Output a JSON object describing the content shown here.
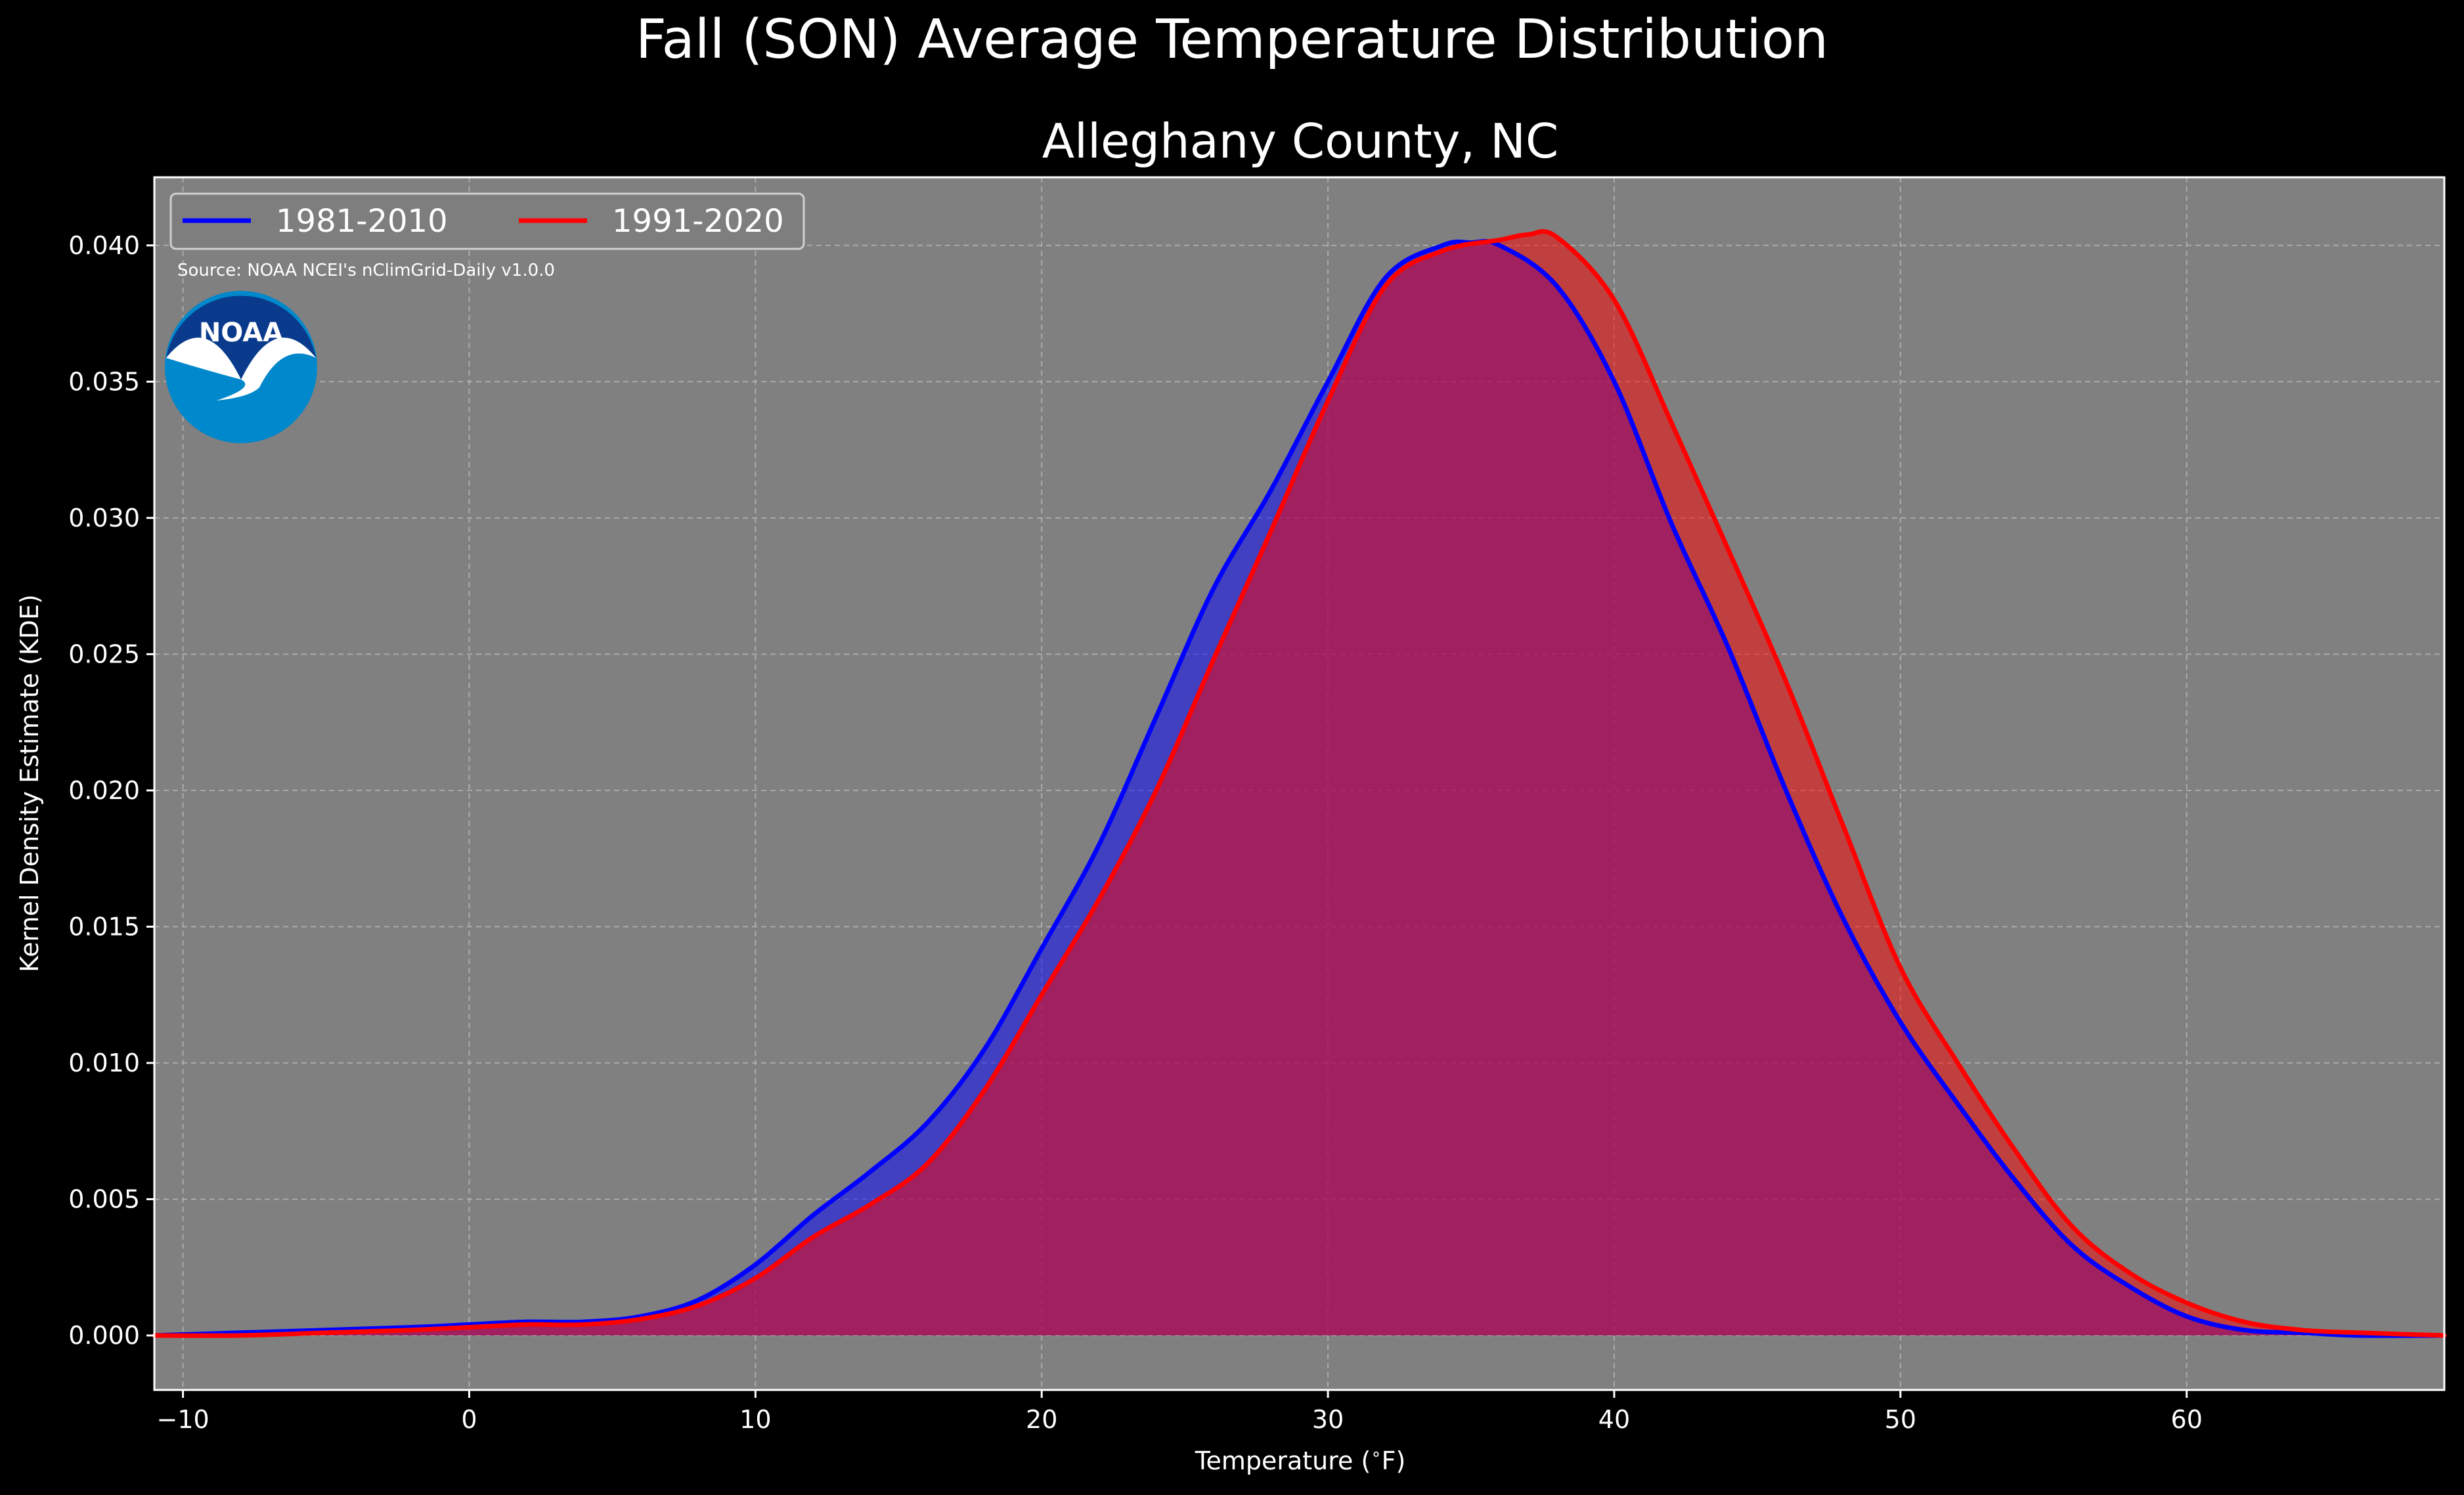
{
  "title": "Fall (SON) Average Temperature Distribution",
  "subtitle": "Alleghany County, NC",
  "source_note": "Source: NOAA NCEI's nClimGrid-Daily v1.0.0",
  "logo": {
    "text": "NOAA",
    "icon": "noaa-logo"
  },
  "colors": {
    "figure_bg": "#000000",
    "plot_bg": "#808080",
    "series_1": "#0000ff",
    "series_2": "#ff0000"
  },
  "chart_data": {
    "type": "area",
    "title": "Fall (SON) Average Temperature Distribution",
    "subtitle": "Alleghany County, NC",
    "xlabel": "Temperature ($^\\circ$F)",
    "ylabel": "Kernel Density Estimate (KDE)",
    "xlim": [
      -11,
      69
    ],
    "ylim": [
      -0.002,
      0.0425
    ],
    "xticks": [
      -10,
      0,
      10,
      20,
      30,
      40,
      50,
      60
    ],
    "xtick_labels": [
      "−10",
      "0",
      "10",
      "20",
      "30",
      "40",
      "50",
      "60"
    ],
    "yticks": [
      0.0,
      0.005,
      0.01,
      0.015,
      0.02,
      0.025,
      0.03,
      0.035,
      0.04
    ],
    "ytick_labels": [
      "0.000",
      "0.005",
      "0.010",
      "0.015",
      "0.020",
      "0.025",
      "0.030",
      "0.035",
      "0.040"
    ],
    "grid": true,
    "legend_position": "top-left",
    "series": [
      {
        "name": "1981-2010",
        "color": "#0000ff",
        "x": [
          -11,
          -8,
          -5,
          -2,
          0,
          2,
          4,
          6,
          8,
          10,
          12,
          14,
          16,
          18,
          20,
          22,
          24,
          26,
          28,
          30,
          32,
          34,
          35,
          36,
          38,
          40,
          42,
          44,
          46,
          48,
          50,
          52,
          54,
          56,
          58,
          60,
          62,
          64,
          66,
          69
        ],
        "y": [
          0.0,
          0.0001,
          0.0002,
          0.0003,
          0.0004,
          0.0005,
          0.0005,
          0.0007,
          0.0013,
          0.0026,
          0.0044,
          0.006,
          0.0078,
          0.0105,
          0.0142,
          0.018,
          0.0227,
          0.0274,
          0.031,
          0.035,
          0.0388,
          0.04,
          0.0401,
          0.04,
          0.0385,
          0.035,
          0.0298,
          0.0252,
          0.02,
          0.0153,
          0.0115,
          0.0085,
          0.0057,
          0.0033,
          0.0018,
          0.0007,
          0.0002,
          0.0001,
          0.0,
          0.0
        ]
      },
      {
        "name": "1991-2020",
        "color": "#ff0000",
        "x": [
          -11,
          -8,
          -5,
          -2,
          0,
          2,
          4,
          6,
          8,
          10,
          12,
          14,
          16,
          18,
          20,
          22,
          24,
          26,
          28,
          30,
          32,
          34,
          36,
          37,
          38,
          40,
          42,
          44,
          46,
          48,
          50,
          52,
          54,
          56,
          58,
          60,
          62,
          64,
          66,
          69
        ],
        "y": [
          0.0,
          0.0,
          0.0001,
          0.0002,
          0.0003,
          0.0004,
          0.0004,
          0.0006,
          0.0011,
          0.0021,
          0.0036,
          0.0048,
          0.0063,
          0.009,
          0.0125,
          0.016,
          0.02,
          0.0248,
          0.0295,
          0.0343,
          0.0385,
          0.0398,
          0.0402,
          0.0404,
          0.0403,
          0.038,
          0.0335,
          0.0288,
          0.024,
          0.0187,
          0.0135,
          0.01,
          0.0068,
          0.004,
          0.0023,
          0.0012,
          0.0005,
          0.0002,
          0.0001,
          0.0
        ]
      }
    ]
  }
}
